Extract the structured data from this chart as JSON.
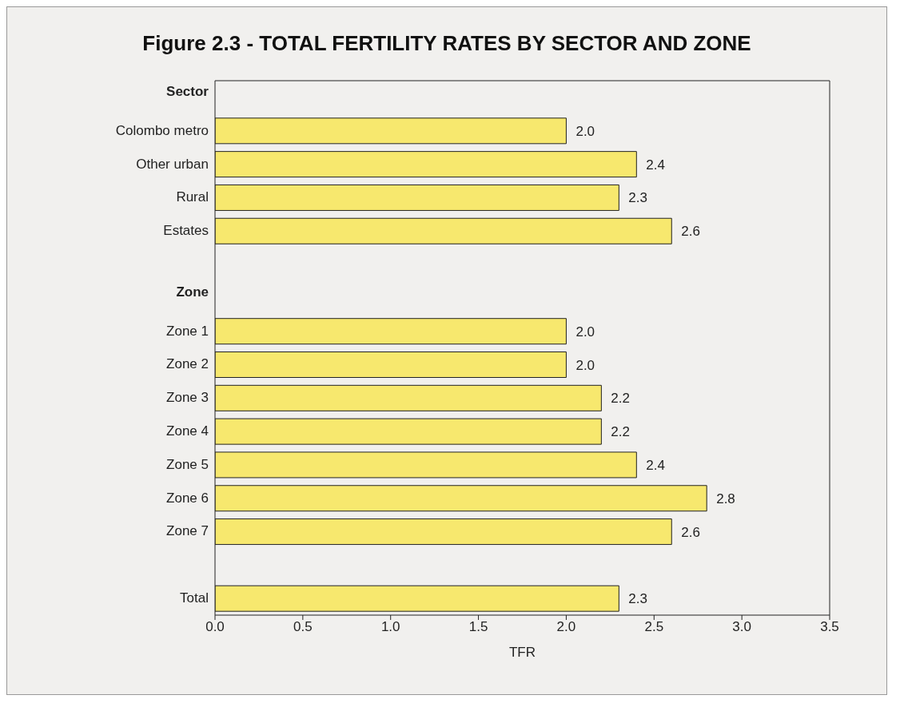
{
  "chart_data": {
    "type": "bar",
    "orientation": "horizontal",
    "title": "Figure 2.3 - TOTAL FERTILITY RATES BY SECTOR AND ZONE",
    "xlabel": "TFR",
    "categories": [
      "Sector",
      "Colombo metro",
      "Other urban",
      "Rural",
      "Estates",
      null,
      "Zone",
      "Zone 1",
      "Zone 2",
      "Zone 3",
      "Zone 4",
      "Zone 5",
      "Zone 6",
      "Zone 7",
      null,
      "Total"
    ],
    "values": [
      null,
      2.0,
      2.4,
      2.3,
      2.6,
      null,
      null,
      2.0,
      2.0,
      2.2,
      2.2,
      2.4,
      2.8,
      2.6,
      null,
      2.3
    ],
    "value_labels": [
      null,
      "2.0",
      "2.4",
      "2.3",
      "2.6",
      null,
      null,
      "2.0",
      "2.0",
      "2.2",
      "2.2",
      "2.4",
      "2.8",
      "2.6",
      null,
      "2.3"
    ],
    "color": "#f7e86e",
    "xlim": [
      0,
      3.5
    ],
    "xticks": [
      {
        "value": 0,
        "label": "0.0"
      },
      {
        "value": 0.5,
        "label": "0.5"
      },
      {
        "value": 1,
        "label": "1.0"
      },
      {
        "value": 1.5,
        "label": "1.5"
      },
      {
        "value": 2,
        "label": "2.0"
      },
      {
        "value": 2.5,
        "label": "2.5"
      },
      {
        "value": 3,
        "label": "3.0"
      },
      {
        "value": 3.5,
        "label": "3.5"
      }
    ],
    "grid": false,
    "legend": false
  }
}
